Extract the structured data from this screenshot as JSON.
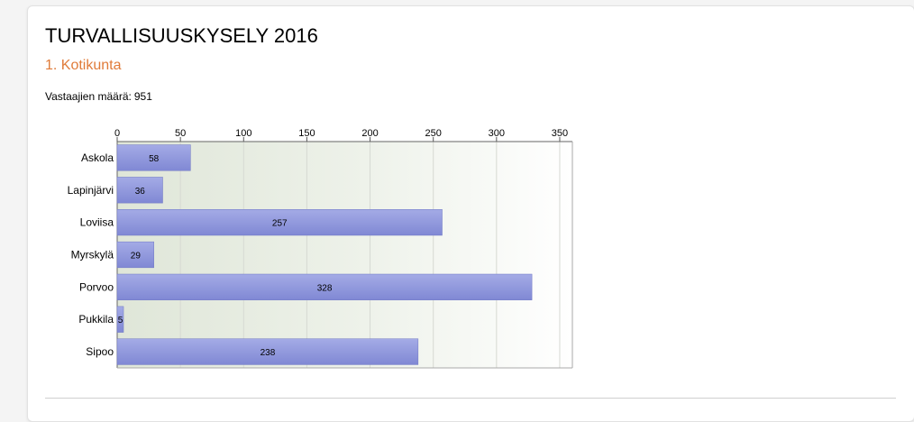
{
  "page": {
    "title": "TURVALLISUUSKYSELY 2016",
    "question": "1. Kotikunta",
    "respondents_label": "Vastaajien määrä:",
    "respondents_count": "951",
    "accent_color": "#e07b39"
  },
  "chart_data": {
    "type": "bar",
    "orientation": "horizontal",
    "categories": [
      "Askola",
      "Lapinjärvi",
      "Loviisa",
      "Myrskylä",
      "Porvoo",
      "Pukkila",
      "Sipoo"
    ],
    "values": [
      58,
      36,
      257,
      29,
      328,
      5,
      238
    ],
    "xlim": [
      0,
      360
    ],
    "ticks": [
      0,
      50,
      100,
      150,
      200,
      250,
      300,
      350
    ],
    "axis_position": "top",
    "grid": true,
    "data_labels": true,
    "bar_color": "#8088d4"
  }
}
